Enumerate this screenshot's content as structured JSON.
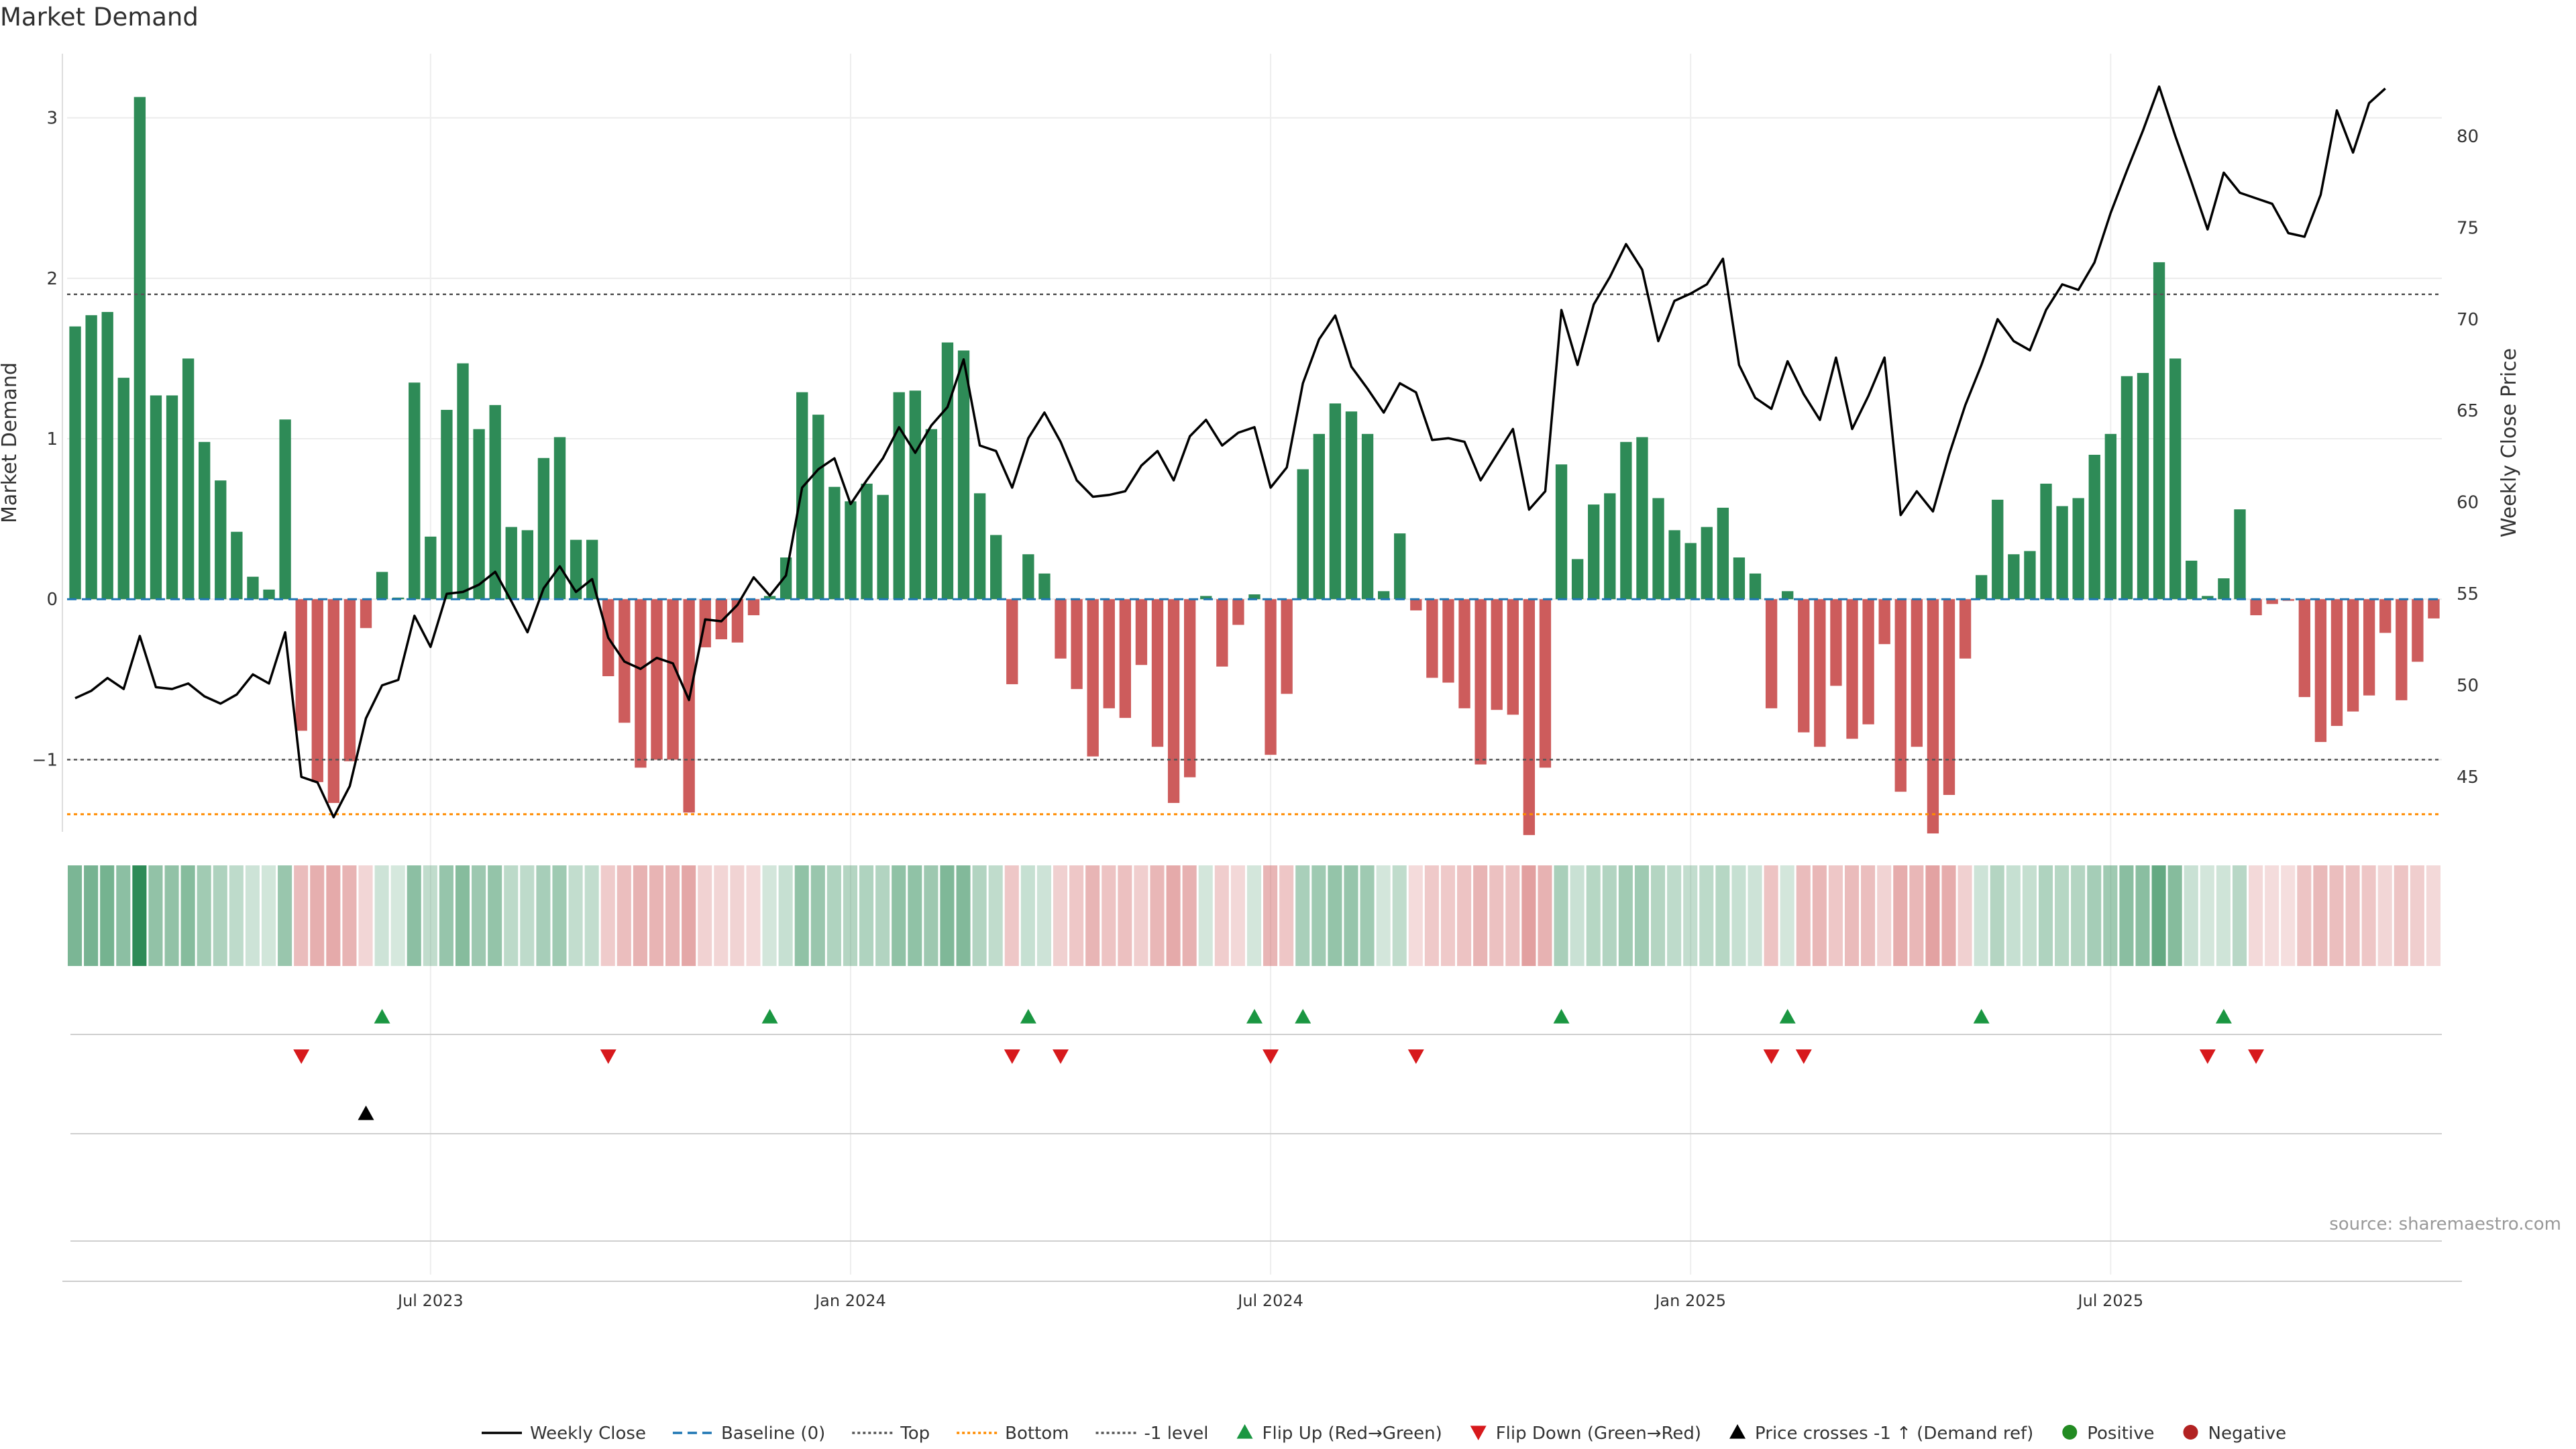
{
  "title": "Market Demand",
  "source": "source: sharemaestro.com",
  "colors": {
    "positive": "#2e8b57",
    "negative": "#cd5c5c",
    "price": "#000000",
    "baseline": "#1f77b4",
    "top": "#555555",
    "bottom": "#ff8c00",
    "level_minus1": "#555555",
    "flip_up": "#1a9641",
    "flip_down": "#d7191c",
    "positive_dot": "#228b22",
    "negative_dot": "#b22222"
  },
  "chart_data": {
    "type": "bar",
    "title": "Market Demand",
    "ylabel": "Market Demand",
    "y2label": "Weekly Close Price",
    "ylim": [
      -1.45,
      3.4
    ],
    "y2lim": [
      42,
      84.5
    ],
    "yticks": [
      -1,
      0,
      1,
      2,
      3
    ],
    "y2ticks": [
      45,
      50,
      55,
      60,
      65,
      70,
      75,
      80
    ],
    "reference_lines": {
      "baseline": 0,
      "top": 1.9,
      "bottom": -1.34,
      "minus_one": -1
    },
    "x_ticks": [
      {
        "label": "Jul 2023",
        "week": 22
      },
      {
        "label": "Jan 2024",
        "week": 48
      },
      {
        "label": "Jul 2024",
        "week": 74
      },
      {
        "label": "Jan 2025",
        "week": 100
      },
      {
        "label": "Jul 2025",
        "week": 126
      }
    ],
    "demand": [
      1.7,
      1.77,
      1.79,
      1.38,
      3.13,
      1.27,
      1.27,
      1.5,
      0.98,
      0.74,
      0.42,
      0.14,
      0.06,
      1.12,
      -0.82,
      -1.14,
      -1.27,
      -1.01,
      -0.18,
      0.17,
      0.01,
      1.35,
      0.39,
      1.18,
      1.47,
      1.06,
      1.21,
      0.45,
      0.43,
      0.88,
      1.01,
      0.37,
      0.37,
      -0.48,
      -0.77,
      -1.05,
      -1.0,
      -1.0,
      -1.33,
      -0.3,
      -0.25,
      -0.27,
      -0.1,
      0.02,
      0.26,
      1.29,
      1.15,
      0.7,
      0.61,
      0.72,
      0.65,
      1.29,
      1.3,
      1.06,
      1.6,
      1.55,
      0.66,
      0.4,
      -0.53,
      0.28,
      0.16,
      -0.37,
      -0.56,
      -0.98,
      -0.68,
      -0.74,
      -0.41,
      -0.92,
      -1.27,
      -1.11,
      0.02,
      -0.42,
      -0.16,
      0.03,
      -0.97,
      -0.59,
      0.81,
      1.03,
      1.22,
      1.17,
      1.03,
      0.05,
      0.41,
      -0.07,
      -0.49,
      -0.52,
      -0.68,
      -1.03,
      -0.69,
      -0.72,
      -1.47,
      -1.05,
      0.84,
      0.25,
      0.59,
      0.66,
      0.98,
      1.01,
      0.63,
      0.43,
      0.35,
      0.45,
      0.57,
      0.26,
      0.16,
      -0.68,
      0.05,
      -0.83,
      -0.92,
      -0.54,
      -0.87,
      -0.78,
      -0.28,
      -1.2,
      -0.92,
      -1.46,
      -1.22,
      -0.37,
      0.15,
      0.62,
      0.28,
      0.3,
      0.72,
      0.58,
      0.63,
      0.9,
      1.03,
      1.39,
      1.41,
      2.1,
      1.5,
      0.24,
      0.02,
      0.13,
      0.56,
      -0.1,
      -0.03,
      -0.01,
      -0.61,
      -0.89,
      -0.79,
      -0.7,
      -0.6,
      -0.21,
      -0.63,
      -0.39,
      -0.12
    ],
    "price": [
      49.3,
      49.7,
      50.4,
      49.8,
      52.7,
      49.9,
      49.8,
      50.1,
      49.4,
      49.0,
      49.5,
      50.6,
      50.1,
      52.9,
      45.0,
      44.7,
      42.8,
      44.5,
      48.2,
      50.0,
      50.3,
      53.8,
      52.1,
      55.0,
      55.1,
      55.5,
      56.2,
      54.6,
      52.9,
      55.3,
      56.5,
      55.1,
      55.8,
      52.6,
      51.3,
      50.9,
      51.5,
      51.2,
      49.2,
      53.6,
      53.5,
      54.4,
      55.9,
      54.9,
      56.0,
      60.8,
      61.8,
      62.4,
      59.9,
      61.2,
      62.4,
      64.1,
      62.7,
      64.2,
      65.2,
      67.8,
      63.1,
      62.8,
      60.8,
      63.5,
      64.9,
      63.3,
      61.2,
      60.3,
      60.4,
      60.6,
      62.0,
      62.8,
      61.2,
      63.6,
      64.5,
      63.1,
      63.8,
      64.1,
      60.8,
      61.9,
      66.5,
      68.9,
      70.2,
      67.4,
      66.2,
      64.9,
      66.5,
      66.0,
      63.4,
      63.5,
      63.3,
      61.2,
      62.6,
      64.0,
      59.6,
      60.6,
      70.5,
      67.5,
      70.8,
      72.3,
      74.1,
      72.7,
      68.8,
      71.0,
      71.4,
      71.9,
      73.3,
      67.5,
      65.7,
      65.1,
      67.7,
      65.9,
      64.5,
      67.9,
      64.0,
      65.8,
      67.9,
      59.3,
      60.6,
      59.5,
      62.6,
      65.3,
      67.5,
      70.0,
      68.8,
      68.3,
      70.5,
      71.9,
      71.6,
      73.1,
      75.8,
      78.1,
      80.3,
      82.7,
      80.0,
      77.5,
      74.9,
      78.0,
      76.9,
      76.6,
      76.3,
      74.7,
      74.5,
      76.8,
      81.4,
      79.1,
      81.8,
      82.6
    ],
    "flip_up_weeks": [
      19,
      43,
      59,
      73,
      76,
      92,
      106,
      118,
      133
    ],
    "flip_down_weeks": [
      14,
      33,
      58,
      61,
      74,
      83,
      105,
      107,
      132,
      135
    ],
    "price_cross_weeks": [
      18
    ],
    "legend": [
      {
        "label": "Weekly Close",
        "kind": "line",
        "color": "#000000",
        "dash": ""
      },
      {
        "label": "Baseline (0)",
        "kind": "line",
        "color": "#1f77b4",
        "dash": "14,8"
      },
      {
        "label": "Top",
        "kind": "line",
        "color": "#555555",
        "dash": "4,4"
      },
      {
        "label": "Bottom",
        "kind": "line",
        "color": "#ff8c00",
        "dash": "4,4"
      },
      {
        "label": "-1 level",
        "kind": "line",
        "color": "#555555",
        "dash": "4,4"
      },
      {
        "label": "Flip Up (Red→Green)",
        "kind": "tri-up",
        "color": "#1a9641"
      },
      {
        "label": "Flip Down (Green→Red)",
        "kind": "tri-down",
        "color": "#d7191c"
      },
      {
        "label": "Price crosses -1 ↑ (Demand ref)",
        "kind": "tri-up",
        "color": "#000000"
      },
      {
        "label": "Positive",
        "kind": "dot",
        "color": "#228b22"
      },
      {
        "label": "Negative",
        "kind": "dot",
        "color": "#b22222"
      }
    ]
  }
}
